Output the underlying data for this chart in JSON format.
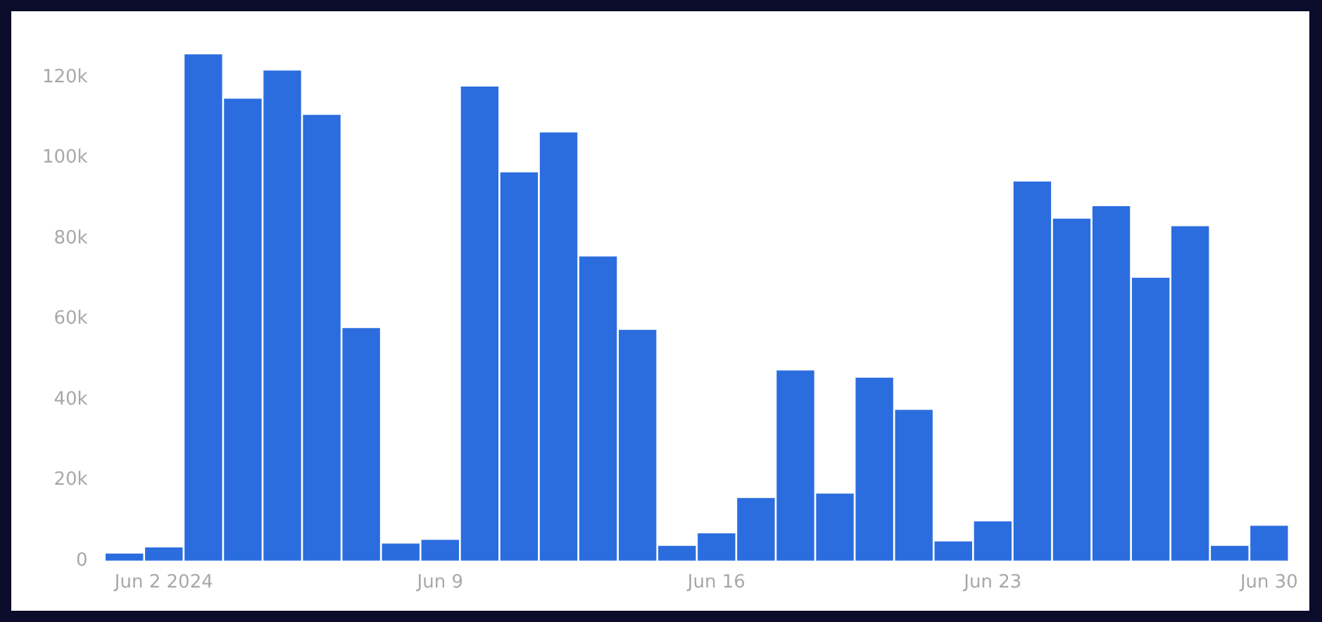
{
  "chart_data": {
    "type": "bar",
    "categories": [
      null,
      "Jun 2 2024",
      null,
      null,
      null,
      null,
      null,
      null,
      "Jun 9",
      null,
      null,
      null,
      null,
      null,
      null,
      "Jun 16",
      null,
      null,
      null,
      null,
      null,
      null,
      "Jun 23",
      null,
      null,
      null,
      null,
      null,
      null,
      "Jun 30"
    ],
    "values": [
      2000,
      3500,
      126000,
      115000,
      122000,
      111000,
      58000,
      4500,
      5400,
      118000,
      96700,
      106600,
      75800,
      57600,
      3900,
      7000,
      15800,
      47500,
      16900,
      45700,
      37700,
      5000,
      10000,
      94400,
      85200,
      88300,
      70500,
      83300,
      3900,
      8900
    ],
    "color": "#2b6ddf",
    "ylim": [
      0,
      126000
    ],
    "yticks": [
      {
        "value": 0,
        "label": "0"
      },
      {
        "value": 20000,
        "label": "20k"
      },
      {
        "value": 40000,
        "label": "40k"
      },
      {
        "value": 60000,
        "label": "60k"
      },
      {
        "value": 80000,
        "label": "80k"
      },
      {
        "value": 100000,
        "label": "100k"
      },
      {
        "value": 120000,
        "label": "120k"
      }
    ],
    "grid": false,
    "legend": false
  }
}
